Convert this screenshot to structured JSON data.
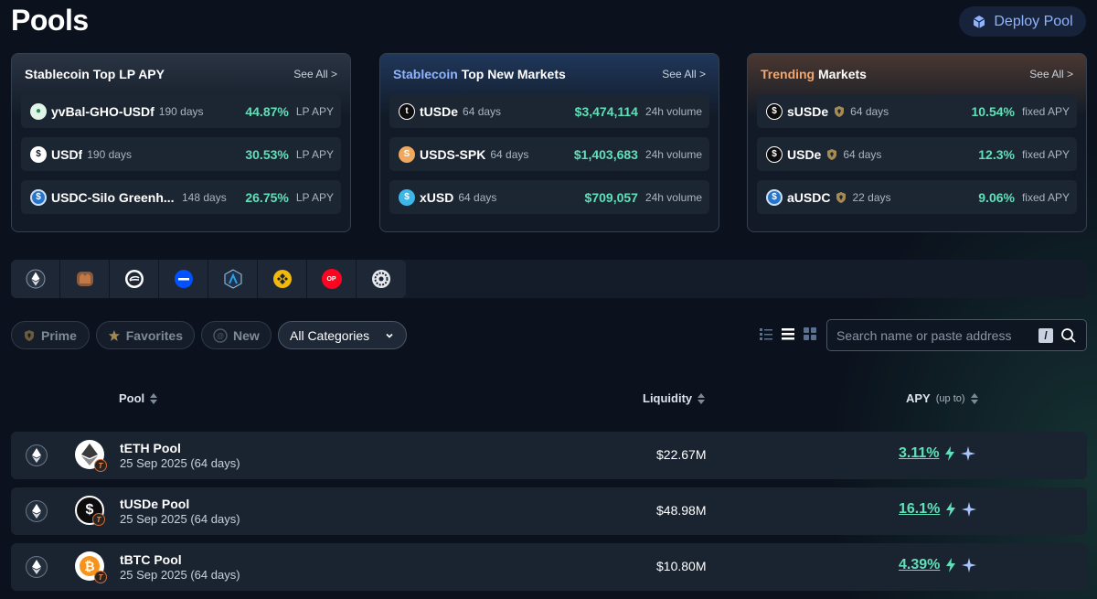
{
  "page": {
    "title": "Pools"
  },
  "header": {
    "deploy_label": "Deploy Pool"
  },
  "cards": [
    {
      "title_accent": "Stablecoin",
      "title_rest": "Top LP APY",
      "see_all": "See All >",
      "rows": [
        {
          "name": "yvBal-GHO-USDf",
          "days": "190 days",
          "value": "44.87%",
          "unit": "LP APY"
        },
        {
          "name": "USDf",
          "days": "190 days",
          "value": "30.53%",
          "unit": "LP APY"
        },
        {
          "name": "USDC-Silo Greenh...",
          "days": "148 days",
          "value": "26.75%",
          "unit": "LP APY"
        }
      ]
    },
    {
      "title_accent": "Stablecoin",
      "title_rest": "Top New Markets",
      "see_all": "See All >",
      "rows": [
        {
          "name": "tUSDe",
          "days": "64 days",
          "value": "$3,474,114",
          "unit": "24h volume"
        },
        {
          "name": "USDS-SPK",
          "days": "64 days",
          "value": "$1,403,683",
          "unit": "24h volume"
        },
        {
          "name": "xUSD",
          "days": "64 days",
          "value": "$709,057",
          "unit": "24h volume"
        }
      ]
    },
    {
      "title_accent": "Trending",
      "title_rest": "Markets",
      "see_all": "See All >",
      "rows": [
        {
          "name": "sUSDe",
          "days": "64 days",
          "value": "10.54%",
          "unit": "fixed APY"
        },
        {
          "name": "USDe",
          "days": "64 days",
          "value": "12.3%",
          "unit": "fixed APY"
        },
        {
          "name": "aUSDC",
          "days": "22 days",
          "value": "9.06%",
          "unit": "fixed APY"
        }
      ]
    }
  ],
  "chains": [
    "ethereum-icon",
    "mantle-icon",
    "sonic-icon",
    "base-icon",
    "arbitrum-icon",
    "bnb-icon",
    "optimism-icon",
    "hyperevm-icon"
  ],
  "chain_labels": {
    "optimism": "OP"
  },
  "filters": {
    "prime": "Prime",
    "favorites": "Favorites",
    "new": "New",
    "categories": "All Categories"
  },
  "search": {
    "placeholder": "Search name or paste address",
    "shortcut": "/"
  },
  "table": {
    "col_pool": "Pool",
    "col_liquidity": "Liquidity",
    "col_apy": "APY",
    "col_apy_sub": "(up to)",
    "rows": [
      {
        "name": "tETH Pool",
        "date": "25 Sep 2025 (64 days)",
        "liquidity": "$22.67M",
        "apy": "3.11%"
      },
      {
        "name": "tUSDe Pool",
        "date": "25 Sep 2025 (64 days)",
        "liquidity": "$48.98M",
        "apy": "16.1%"
      },
      {
        "name": "tBTC Pool",
        "date": "25 Sep 2025 (64 days)",
        "liquidity": "$10.80M",
        "apy": "4.39%"
      }
    ]
  },
  "colors": {
    "accent_green": "#5fe0b8",
    "accent_blue": "#8fb4ff",
    "accent_orange": "#f5a76a",
    "bg": "#0b121d"
  }
}
